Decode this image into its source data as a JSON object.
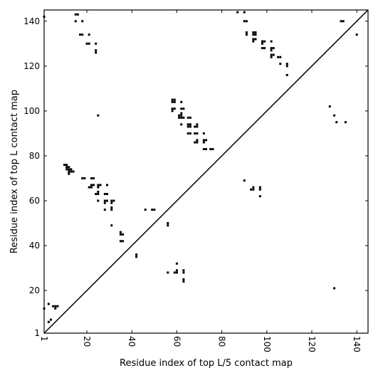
{
  "chart_data": {
    "type": "scatter",
    "subtype": "contact-map",
    "title": "",
    "xlabel": "Residue index of top L/5 contact map",
    "ylabel": "Residue index of top L contact map",
    "xlim": [
      1,
      145
    ],
    "ylim": [
      1,
      145
    ],
    "x_ticks": [
      1,
      20,
      40,
      60,
      80,
      100,
      120,
      140
    ],
    "y_ticks": [
      1,
      20,
      40,
      60,
      80,
      100,
      120,
      140
    ],
    "x_tick_rotation": -90,
    "diagonal": true,
    "grid": false,
    "marker_color": "#000000",
    "series": [
      {
        "points": [
          [
            1,
            142
          ],
          [
            15,
            143
          ],
          [
            16,
            143
          ],
          [
            15,
            140
          ],
          [
            18,
            140
          ],
          [
            17,
            134
          ],
          [
            18,
            134
          ],
          [
            21,
            134
          ],
          [
            20,
            130
          ],
          [
            21,
            130
          ],
          [
            24,
            130
          ],
          [
            24,
            127
          ],
          [
            24,
            126
          ],
          [
            25,
            98
          ],
          [
            10,
            76
          ],
          [
            11,
            76
          ],
          [
            11,
            75
          ],
          [
            12,
            75
          ],
          [
            11,
            74
          ],
          [
            12,
            74
          ],
          [
            13,
            74
          ],
          [
            12,
            73
          ],
          [
            13,
            73
          ],
          [
            14,
            73
          ],
          [
            12,
            72
          ],
          [
            18,
            70
          ],
          [
            19,
            70
          ],
          [
            22,
            70
          ],
          [
            23,
            70
          ],
          [
            22,
            67
          ],
          [
            23,
            67
          ],
          [
            25,
            67
          ],
          [
            26,
            67
          ],
          [
            21,
            66
          ],
          [
            22,
            66
          ],
          [
            25,
            66
          ],
          [
            24,
            63
          ],
          [
            25,
            63
          ],
          [
            25,
            64
          ],
          [
            28,
            63
          ],
          [
            29,
            63
          ],
          [
            29,
            67
          ],
          [
            25,
            60
          ],
          [
            28,
            60
          ],
          [
            29,
            60
          ],
          [
            28,
            59
          ],
          [
            31,
            60
          ],
          [
            32,
            60
          ],
          [
            31,
            59
          ],
          [
            31,
            57
          ],
          [
            31,
            56
          ],
          [
            28,
            56
          ],
          [
            31,
            49
          ],
          [
            35,
            46
          ],
          [
            35,
            45
          ],
          [
            36,
            45
          ],
          [
            35,
            42
          ],
          [
            36,
            42
          ],
          [
            42,
            36
          ],
          [
            42,
            35
          ],
          [
            46,
            56
          ],
          [
            49,
            56
          ],
          [
            50,
            56
          ],
          [
            56,
            50
          ],
          [
            56,
            49
          ],
          [
            56,
            28
          ],
          [
            59,
            28
          ],
          [
            60,
            28
          ],
          [
            60,
            29
          ],
          [
            60,
            32
          ],
          [
            63,
            29
          ],
          [
            63,
            28
          ],
          [
            63,
            25
          ],
          [
            63,
            24
          ],
          [
            58,
            105
          ],
          [
            59,
            105
          ],
          [
            58,
            104
          ],
          [
            59,
            104
          ],
          [
            62,
            104
          ],
          [
            58,
            101
          ],
          [
            59,
            101
          ],
          [
            58,
            100
          ],
          [
            62,
            101
          ],
          [
            63,
            101
          ],
          [
            62,
            99
          ],
          [
            61,
            98
          ],
          [
            62,
            98
          ],
          [
            61,
            97
          ],
          [
            62,
            97
          ],
          [
            63,
            97
          ],
          [
            65,
            97
          ],
          [
            66,
            97
          ],
          [
            62,
            94
          ],
          [
            65,
            94
          ],
          [
            66,
            94
          ],
          [
            65,
            93
          ],
          [
            66,
            93
          ],
          [
            68,
            93
          ],
          [
            69,
            93
          ],
          [
            69,
            94
          ],
          [
            65,
            90
          ],
          [
            66,
            90
          ],
          [
            68,
            90
          ],
          [
            69,
            90
          ],
          [
            72,
            90
          ],
          [
            69,
            87
          ],
          [
            68,
            86
          ],
          [
            69,
            86
          ],
          [
            72,
            87
          ],
          [
            73,
            87
          ],
          [
            72,
            86
          ],
          [
            72,
            83
          ],
          [
            73,
            83
          ],
          [
            75,
            83
          ],
          [
            76,
            83
          ],
          [
            87,
            144
          ],
          [
            90,
            144
          ],
          [
            90,
            140
          ],
          [
            91,
            140
          ],
          [
            91,
            135
          ],
          [
            91,
            134
          ],
          [
            94,
            135
          ],
          [
            95,
            135
          ],
          [
            94,
            134
          ],
          [
            95,
            134
          ],
          [
            94,
            132
          ],
          [
            95,
            132
          ],
          [
            94,
            131
          ],
          [
            98,
            131
          ],
          [
            99,
            131
          ],
          [
            98,
            130
          ],
          [
            98,
            128
          ],
          [
            99,
            128
          ],
          [
            102,
            131
          ],
          [
            102,
            128
          ],
          [
            103,
            128
          ],
          [
            102,
            127
          ],
          [
            102,
            125
          ],
          [
            103,
            125
          ],
          [
            102,
            124
          ],
          [
            105,
            124
          ],
          [
            106,
            124
          ],
          [
            106,
            121
          ],
          [
            109,
            121
          ],
          [
            109,
            120
          ],
          [
            109,
            116
          ],
          [
            90,
            69
          ],
          [
            93,
            65
          ],
          [
            94,
            65
          ],
          [
            94,
            66
          ],
          [
            97,
            66
          ],
          [
            97,
            65
          ],
          [
            97,
            62
          ],
          [
            128,
            102
          ],
          [
            130,
            98
          ],
          [
            131,
            95
          ],
          [
            135,
            95
          ],
          [
            130,
            21
          ],
          [
            133,
            140
          ],
          [
            134,
            140
          ],
          [
            140,
            134
          ],
          [
            1,
            12
          ],
          [
            3,
            14
          ],
          [
            5,
            13
          ],
          [
            6,
            13
          ],
          [
            7,
            13
          ],
          [
            6,
            12
          ],
          [
            3,
            6
          ],
          [
            4,
            7
          ]
        ]
      }
    ]
  }
}
